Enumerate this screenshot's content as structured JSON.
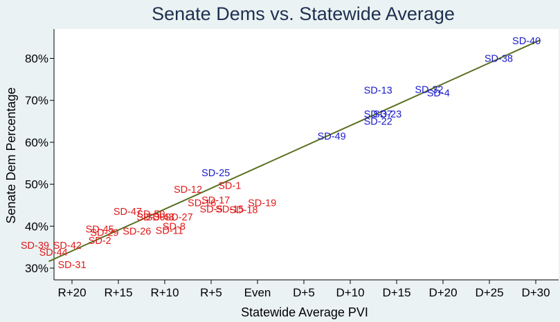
{
  "chart_data": {
    "type": "scatter",
    "title": "Senate Dems vs. Statewide Average",
    "xlabel": "Statewide Average PVI",
    "ylabel": "Senate Dem Percentage",
    "xlim": [
      -25,
      31
    ],
    "ylim": [
      29,
      87
    ],
    "x_ticks": [
      {
        "value": -20,
        "label": "R+20"
      },
      {
        "value": -15,
        "label": "R+15"
      },
      {
        "value": -10,
        "label": "R+10"
      },
      {
        "value": -5,
        "label": "R+5"
      },
      {
        "value": 0,
        "label": "Even"
      },
      {
        "value": 5,
        "label": "D+5"
      },
      {
        "value": 10,
        "label": "D+10"
      },
      {
        "value": 15,
        "label": "D+15"
      },
      {
        "value": 20,
        "label": "D+20"
      },
      {
        "value": 25,
        "label": "D+25"
      },
      {
        "value": 30,
        "label": "D+30"
      }
    ],
    "y_ticks": [
      {
        "value": 30,
        "label": "30%"
      },
      {
        "value": 40,
        "label": "40%"
      },
      {
        "value": 50,
        "label": "50%"
      },
      {
        "value": 60,
        "label": "60%"
      },
      {
        "value": 70,
        "label": "70%"
      },
      {
        "value": 80,
        "label": "80%"
      }
    ],
    "fit_line": {
      "x": [
        -22.5,
        30.5
      ],
      "y": [
        31.6,
        84.4
      ]
    },
    "colors": {
      "dem": "#1a1acc",
      "rep": "#e01a1a",
      "fit": "#5a7020",
      "title": "#1e3050",
      "background": "#eaf2f3",
      "plot": "#ffffff"
    },
    "points": [
      {
        "label": "SD-40",
        "x": 29,
        "y": 84.2,
        "party": "dem"
      },
      {
        "label": "SD-38",
        "x": 26,
        "y": 80.0,
        "party": "dem"
      },
      {
        "label": "SD-13",
        "x": 13,
        "y": 72.4,
        "party": "dem"
      },
      {
        "label": "SD-32",
        "x": 18.5,
        "y": 72.6,
        "party": "dem"
      },
      {
        "label": "SD-4",
        "x": 19.5,
        "y": 71.8,
        "party": "dem"
      },
      {
        "label": "SD-37",
        "x": 13,
        "y": 66.7,
        "party": "dem"
      },
      {
        "label": "SD-23",
        "x": 14,
        "y": 66.7,
        "party": "dem"
      },
      {
        "label": "SD-22",
        "x": 13,
        "y": 65.0,
        "party": "dem"
      },
      {
        "label": "SD-49",
        "x": 8,
        "y": 61.5,
        "party": "dem"
      },
      {
        "label": "SD-25",
        "x": -4.5,
        "y": 52.7,
        "party": "dem"
      },
      {
        "label": "SD-1",
        "x": -3,
        "y": 49.7,
        "party": "rep"
      },
      {
        "label": "SD-12",
        "x": -7.5,
        "y": 48.8,
        "party": "rep"
      },
      {
        "label": "SD-17",
        "x": -4.5,
        "y": 46.2,
        "party": "rep"
      },
      {
        "label": "SD-16",
        "x": -6,
        "y": 45.6,
        "party": "rep"
      },
      {
        "label": "SD-19",
        "x": 0.5,
        "y": 45.6,
        "party": "rep"
      },
      {
        "label": "SD-5",
        "x": -5,
        "y": 44.1,
        "party": "rep"
      },
      {
        "label": "SD-15",
        "x": -3,
        "y": 44.1,
        "party": "rep"
      },
      {
        "label": "SD-18",
        "x": -1.5,
        "y": 43.9,
        "party": "rep"
      },
      {
        "label": "SD-47",
        "x": -14,
        "y": 43.5,
        "party": "rep"
      },
      {
        "label": "SD-50",
        "x": -11.5,
        "y": 42.9,
        "party": "rep"
      },
      {
        "label": "SD-30",
        "x": -11.5,
        "y": 42.2,
        "party": "rep"
      },
      {
        "label": "SD-48",
        "x": -10.5,
        "y": 42.2,
        "party": "rep"
      },
      {
        "label": "SD-27",
        "x": -8.5,
        "y": 42.2,
        "party": "rep"
      },
      {
        "label": "SD-8",
        "x": -9,
        "y": 40.0,
        "party": "rep"
      },
      {
        "label": "SD-45",
        "x": -17,
        "y": 39.3,
        "party": "rep"
      },
      {
        "label": "SD-26",
        "x": -13,
        "y": 38.8,
        "party": "rep"
      },
      {
        "label": "SD-29",
        "x": -16.5,
        "y": 38.5,
        "party": "rep"
      },
      {
        "label": "SD-11",
        "x": -9.5,
        "y": 39.0,
        "party": "rep"
      },
      {
        "label": "SD-2",
        "x": -17,
        "y": 36.6,
        "party": "rep"
      },
      {
        "label": "SD-39",
        "x": -24,
        "y": 35.4,
        "party": "rep"
      },
      {
        "label": "SD-42",
        "x": -20.5,
        "y": 35.4,
        "party": "rep"
      },
      {
        "label": "SD-44",
        "x": -22,
        "y": 33.8,
        "party": "rep"
      },
      {
        "label": "SD-31",
        "x": -20,
        "y": 30.8,
        "party": "rep"
      }
    ]
  }
}
